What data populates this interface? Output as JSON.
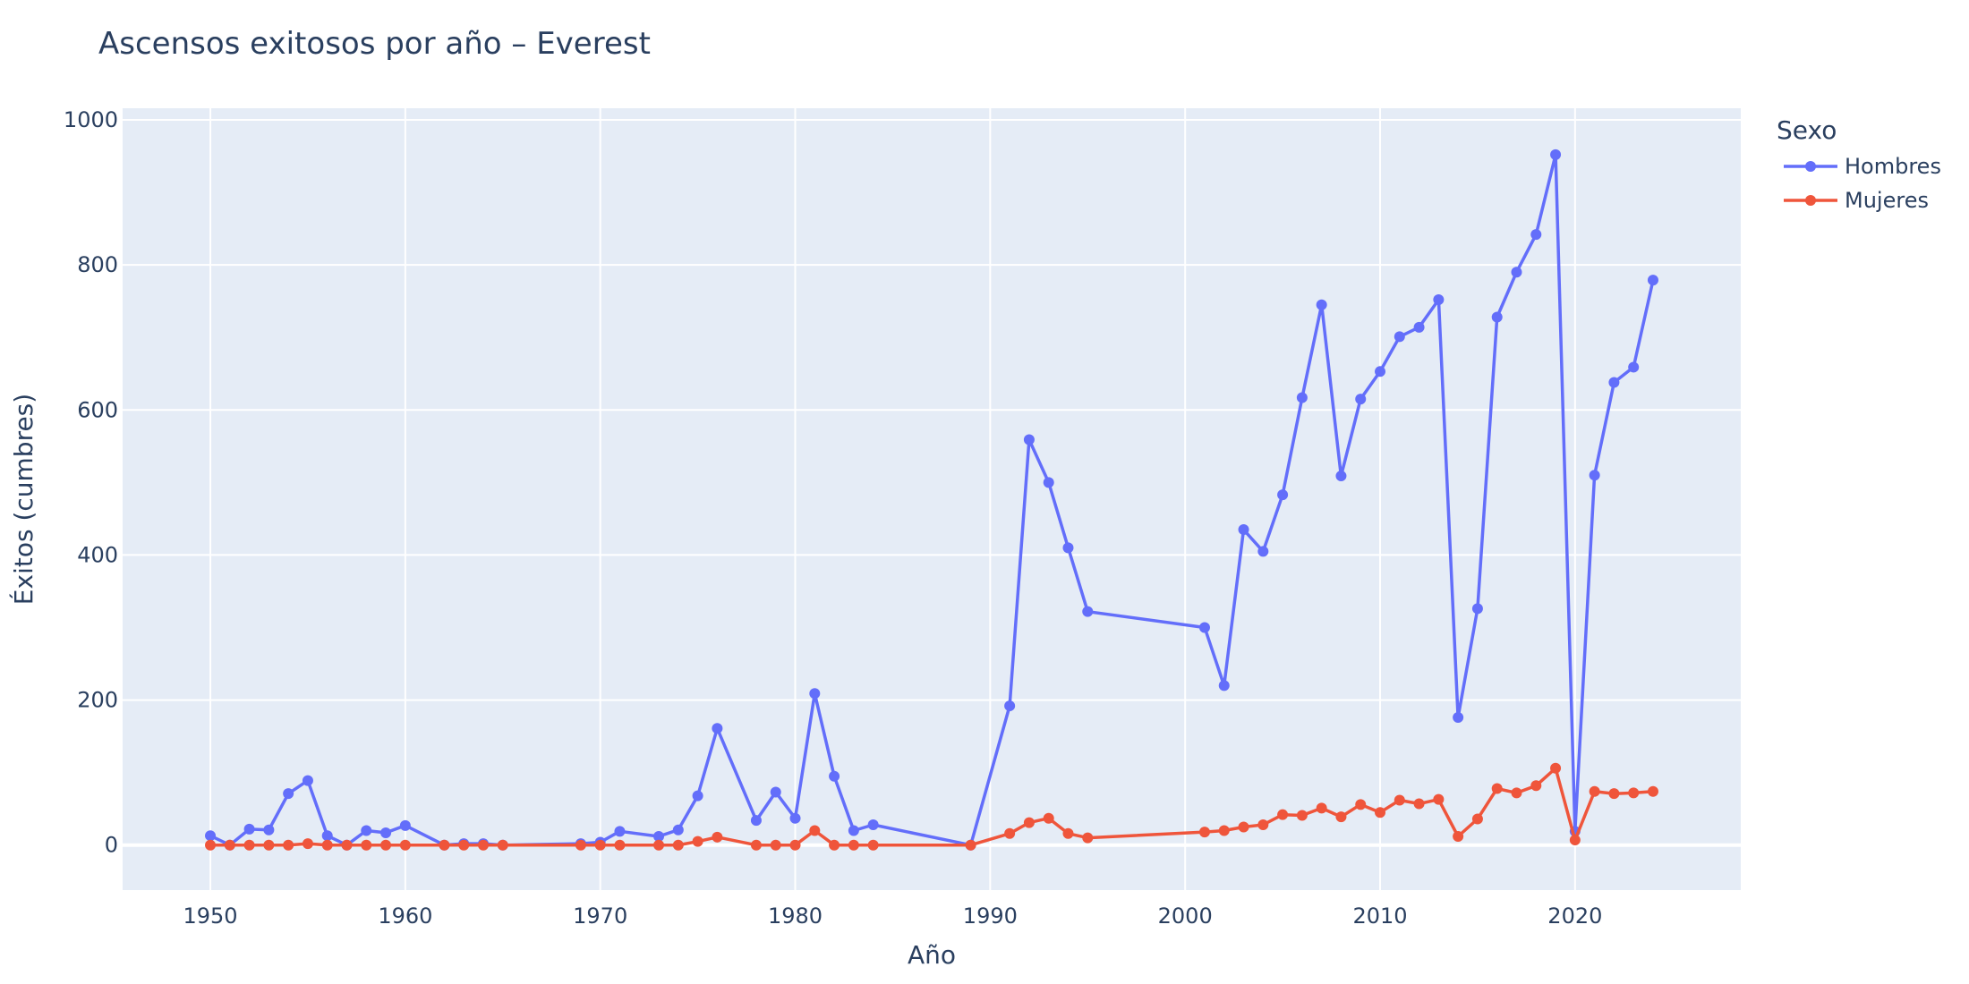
{
  "chart_data": {
    "type": "line",
    "title": "Ascensos exitosos por año – Everest",
    "xlabel": "Año",
    "ylabel": "Éxitos (cumbres)",
    "xlim": [
      1945.5,
      2028.5
    ],
    "ylim": [
      -62,
      1016
    ],
    "xticks": [
      1950,
      1960,
      1970,
      1980,
      1990,
      2000,
      2010,
      2020
    ],
    "yticks": [
      0,
      200,
      400,
      600,
      800,
      1000
    ],
    "grid": true,
    "legend": {
      "title": "Sexo",
      "position": "top-right"
    },
    "colors": {
      "plot_bg": "#e5ecf6",
      "grid": "#ffffff",
      "text": "#2a3f5f"
    },
    "series": [
      {
        "name": "Hombres",
        "color": "#636efa",
        "x": [
          1950,
          1951,
          1952,
          1953,
          1954,
          1955,
          1956,
          1957,
          1958,
          1959,
          1960,
          1962,
          1963,
          1964,
          1965,
          1969,
          1970,
          1971,
          1973,
          1974,
          1975,
          1976,
          1978,
          1979,
          1980,
          1981,
          1982,
          1983,
          1984,
          1989,
          1991,
          1992,
          1993,
          1994,
          1995,
          2001,
          2002,
          2003,
          2004,
          2005,
          2006,
          2007,
          2008,
          2009,
          2010,
          2011,
          2012,
          2013,
          2014,
          2015,
          2016,
          2017,
          2018,
          2019,
          2020,
          2021,
          2022,
          2023,
          2024
        ],
        "y": [
          13,
          0,
          22,
          21,
          71,
          89,
          13,
          0,
          20,
          17,
          27,
          0,
          2,
          2,
          0,
          2,
          4,
          19,
          12,
          21,
          68,
          161,
          34,
          73,
          37,
          209,
          95,
          20,
          28,
          0,
          192,
          559,
          500,
          410,
          322,
          300,
          220,
          435,
          405,
          483,
          617,
          745,
          509,
          615,
          653,
          701,
          714,
          752,
          176,
          326,
          728,
          790,
          842,
          952,
          19,
          510,
          638,
          659,
          779
        ]
      },
      {
        "name": "Mujeres",
        "color": "#ef553b",
        "x": [
          1950,
          1951,
          1952,
          1953,
          1954,
          1955,
          1956,
          1957,
          1958,
          1959,
          1960,
          1962,
          1963,
          1964,
          1965,
          1969,
          1970,
          1971,
          1973,
          1974,
          1975,
          1976,
          1978,
          1979,
          1980,
          1981,
          1982,
          1983,
          1984,
          1989,
          1991,
          1992,
          1993,
          1994,
          1995,
          2001,
          2002,
          2003,
          2004,
          2005,
          2006,
          2007,
          2008,
          2009,
          2010,
          2011,
          2012,
          2013,
          2014,
          2015,
          2016,
          2017,
          2018,
          2019,
          2020,
          2021,
          2022,
          2023,
          2024
        ],
        "y": [
          0,
          0,
          0,
          0,
          0,
          2,
          0,
          0,
          0,
          0,
          0,
          0,
          0,
          0,
          0,
          0,
          0,
          0,
          0,
          0,
          5,
          11,
          0,
          0,
          0,
          20,
          0,
          0,
          0,
          0,
          16,
          31,
          37,
          16,
          10,
          18,
          20,
          25,
          28,
          42,
          41,
          51,
          39,
          56,
          45,
          62,
          57,
          63,
          12,
          36,
          78,
          72,
          82,
          106,
          7,
          74,
          71,
          72,
          74
        ]
      }
    ]
  }
}
